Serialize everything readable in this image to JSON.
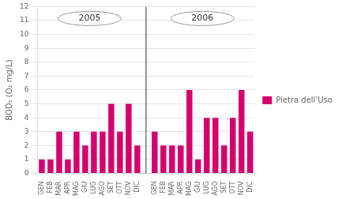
{
  "chart_data": {
    "type": "bar",
    "categories": [
      "GEN",
      "FEB",
      "MAR",
      "APR",
      "MAG",
      "GIU",
      "LUG",
      "AGO",
      "SET",
      "OTT",
      "NOV",
      "DIC",
      null,
      "GEN",
      "FEB",
      "MAR",
      "APR",
      "MAG",
      "GIU",
      "LUG",
      "AGO",
      "SET",
      "OTT",
      "NOV",
      "DIC"
    ],
    "series": [
      {
        "name": "Pietra dell'Uso",
        "color": "#d4006e",
        "values": [
          1,
          1,
          3,
          1,
          3,
          2,
          3,
          3,
          5,
          3,
          5,
          2,
          null,
          3,
          2,
          2,
          2,
          6,
          1,
          4,
          4,
          2,
          4,
          6,
          3
        ]
      }
    ],
    "ylabel": "BOD₅ (O₂ mg/L)",
    "ylim": [
      0,
      12
    ],
    "yticks": [
      0,
      1,
      2,
      3,
      4,
      5,
      6,
      7,
      8,
      9,
      10,
      11,
      12
    ],
    "annotations": [
      "2005",
      "2006"
    ],
    "grid": true,
    "legend": "right"
  }
}
